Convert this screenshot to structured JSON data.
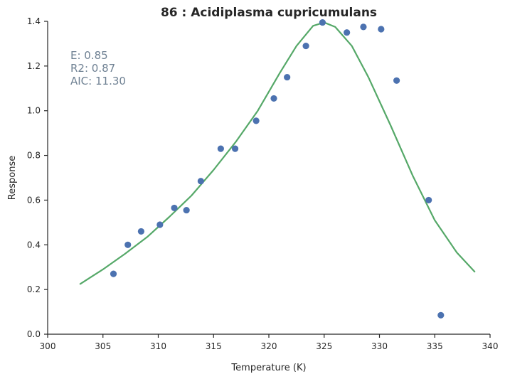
{
  "chart_data": {
    "type": "scatter",
    "title": "86 : Acidiplasma cupricumulans",
    "xlabel": "Temperature (K)",
    "ylabel": "Response",
    "xlim": [
      300,
      340
    ],
    "ylim": [
      0.0,
      1.4
    ],
    "xticks": [
      300,
      305,
      310,
      315,
      320,
      325,
      330,
      335,
      340
    ],
    "yticks": [
      0.0,
      0.2,
      0.4,
      0.6,
      0.8,
      1.0,
      1.2,
      1.4
    ],
    "grid": false,
    "annotations": [
      "E:  0.85",
      "R2:  0.87",
      "AIC: 11.30"
    ],
    "colors": {
      "points": "#4c72b0",
      "fit": "#55a868",
      "annotation": "#6f8193"
    },
    "series": [
      {
        "type": "scatter",
        "x": [
          305.95,
          307.25,
          308.45,
          310.15,
          311.45,
          312.55,
          313.85,
          315.65,
          316.95,
          318.85,
          320.45,
          321.65,
          323.35,
          324.85,
          327.05,
          328.55,
          330.15,
          331.55,
          334.45,
          335.55
        ],
        "y": [
          0.27,
          0.4,
          0.46,
          0.49,
          0.565,
          0.555,
          0.685,
          0.83,
          0.83,
          0.955,
          1.055,
          1.15,
          1.29,
          1.395,
          1.35,
          1.375,
          1.365,
          1.135,
          0.6,
          0.085
        ]
      },
      {
        "type": "line",
        "x": [
          302.95,
          305.0,
          307.0,
          309.0,
          311.0,
          313.0,
          315.0,
          317.0,
          319.0,
          321.0,
          322.5,
          324.0,
          325.0,
          326.0,
          327.5,
          329.0,
          331.0,
          333.0,
          335.0,
          337.0,
          338.6
        ],
        "y": [
          0.225,
          0.29,
          0.36,
          0.435,
          0.525,
          0.62,
          0.735,
          0.86,
          1.0,
          1.17,
          1.29,
          1.38,
          1.395,
          1.375,
          1.29,
          1.15,
          0.935,
          0.71,
          0.51,
          0.365,
          0.28
        ]
      }
    ]
  }
}
